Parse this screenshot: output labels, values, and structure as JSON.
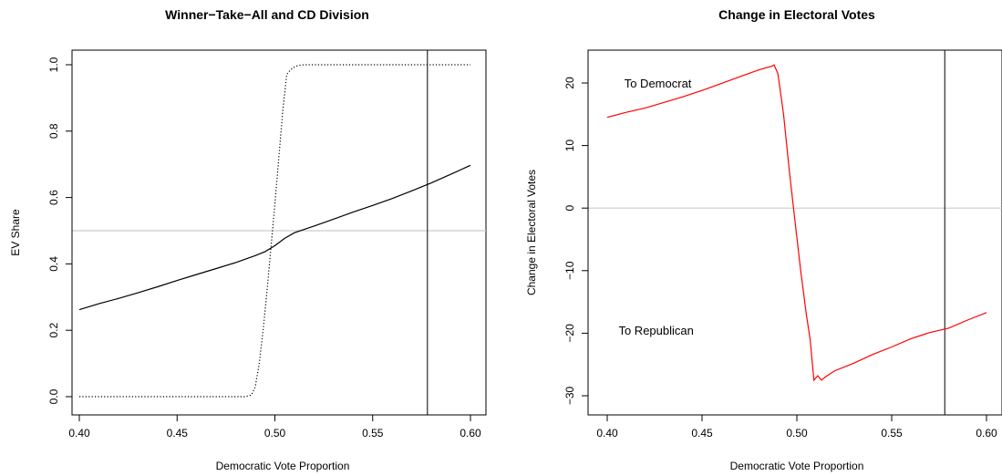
{
  "chart_data": [
    {
      "type": "line",
      "title": "Winner−Take−All and CD Division",
      "xlabel": "Democratic Vote Proportion",
      "ylabel": "EV Share",
      "xlim": [
        0.4,
        0.6
      ],
      "ylim": [
        0.0,
        1.0
      ],
      "xticks": [
        0.4,
        0.45,
        0.5,
        0.55,
        0.6
      ],
      "xtick_labels": [
        "0.40",
        "0.45",
        "0.50",
        "0.55",
        "0.60"
      ],
      "yticks": [
        0.0,
        0.2,
        0.4,
        0.6,
        0.8,
        1.0
      ],
      "ytick_labels": [
        "0.0",
        "0.2",
        "0.4",
        "0.6",
        "0.8",
        "1.0"
      ],
      "grid": false,
      "hline": 0.5,
      "vline": 0.578,
      "series": [
        {
          "style": "solid",
          "color": "#000000",
          "x": [
            0.4,
            0.41,
            0.42,
            0.43,
            0.44,
            0.45,
            0.46,
            0.47,
            0.48,
            0.49,
            0.495,
            0.5,
            0.505,
            0.51,
            0.52,
            0.53,
            0.54,
            0.55,
            0.56,
            0.57,
            0.58,
            0.59,
            0.6
          ],
          "y": [
            0.262,
            0.28,
            0.296,
            0.313,
            0.331,
            0.35,
            0.368,
            0.386,
            0.404,
            0.425,
            0.437,
            0.455,
            0.477,
            0.494,
            0.514,
            0.535,
            0.556,
            0.576,
            0.597,
            0.62,
            0.644,
            0.67,
            0.697
          ]
        },
        {
          "style": "dotted",
          "color": "#000000",
          "x": [
            0.4,
            0.45,
            0.485,
            0.488,
            0.49,
            0.492,
            0.494,
            0.496,
            0.498,
            0.5,
            0.502,
            0.504,
            0.506,
            0.508,
            0.51,
            0.512,
            0.515,
            0.53,
            0.55,
            0.6
          ],
          "y": [
            0.0,
            0.0,
            0.0,
            0.005,
            0.03,
            0.1,
            0.2,
            0.32,
            0.45,
            0.58,
            0.72,
            0.86,
            0.97,
            0.985,
            0.993,
            0.998,
            1.0,
            1.0,
            1.0,
            1.0
          ]
        }
      ]
    },
    {
      "type": "line",
      "title": "Change in Electoral Votes",
      "xlabel": "Democratic Vote Proportion",
      "ylabel": "Change in Electoral Votes",
      "xlim": [
        0.4,
        0.6
      ],
      "ylim": [
        -30,
        22
      ],
      "xticks": [
        0.4,
        0.45,
        0.5,
        0.55,
        0.6
      ],
      "xtick_labels": [
        "0.40",
        "0.45",
        "0.50",
        "0.55",
        "0.60"
      ],
      "yticks": [
        -30,
        -20,
        -10,
        0,
        10,
        20
      ],
      "ytick_labels": [
        "−30",
        "−20",
        "−10",
        "0",
        "10",
        "20"
      ],
      "grid": false,
      "hline": 0,
      "vline": 0.578,
      "annotations": [
        {
          "text": "To Democrat",
          "x": 0.409,
          "y": 20
        },
        {
          "text": "To Republican",
          "x": 0.406,
          "y": -19.5
        }
      ],
      "series": [
        {
          "style": "solid",
          "color": "#ff0000",
          "x": [
            0.4,
            0.41,
            0.42,
            0.43,
            0.44,
            0.45,
            0.46,
            0.47,
            0.48,
            0.487,
            0.488,
            0.49,
            0.493,
            0.496,
            0.499,
            0.502,
            0.505,
            0.507,
            0.509,
            0.511,
            0.513,
            0.515,
            0.52,
            0.53,
            0.54,
            0.55,
            0.56,
            0.57,
            0.58,
            0.59,
            0.6
          ],
          "y": [
            14.5,
            15.3,
            16.0,
            16.9,
            17.8,
            18.8,
            19.9,
            21.0,
            22.1,
            22.7,
            22.9,
            21.5,
            15.0,
            6.0,
            -2.0,
            -10.0,
            -17.0,
            -21.0,
            -27.5,
            -26.8,
            -27.5,
            -27.0,
            -26.0,
            -24.8,
            -23.4,
            -22.2,
            -20.9,
            -19.9,
            -19.2,
            -17.9,
            -16.7
          ]
        }
      ]
    }
  ]
}
